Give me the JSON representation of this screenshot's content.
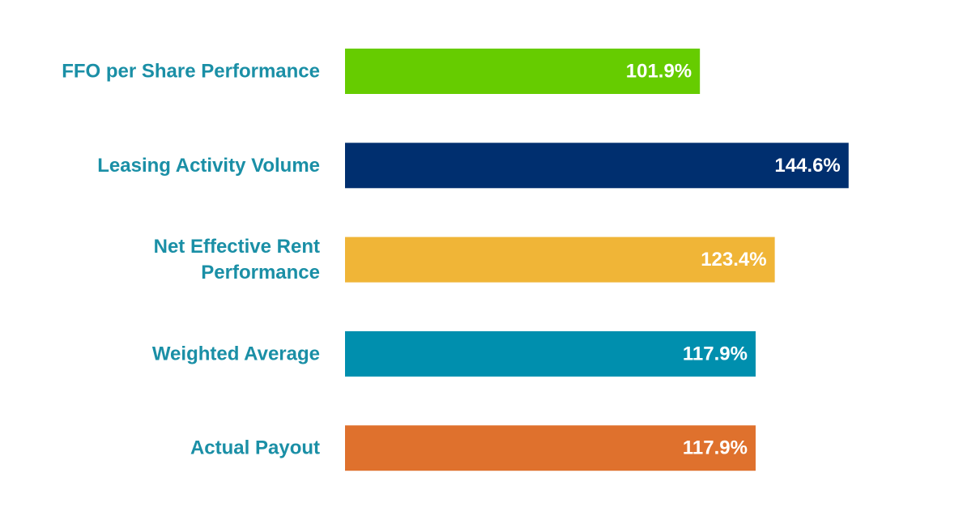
{
  "chart_data": {
    "type": "bar",
    "orientation": "horizontal",
    "title": "",
    "xlabel": "",
    "ylabel": "",
    "categories": [
      "FFO per Share Performance",
      "Leasing Activity Volume",
      "Net Effective Rent Performance",
      "Weighted Average",
      "Actual Payout"
    ],
    "category_lines": [
      [
        "FFO per Share Performance"
      ],
      [
        "Leasing Activity Volume"
      ],
      [
        "Net Effective Rent",
        "Performance"
      ],
      [
        "Weighted Average"
      ],
      [
        "Actual Payout"
      ]
    ],
    "values": [
      101.9,
      144.6,
      123.4,
      117.9,
      117.9
    ],
    "value_labels": [
      "101.9%",
      "144.6%",
      "123.4%",
      "117.9%",
      "117.9%"
    ],
    "colors": [
      "#66cc00",
      "#002f6f",
      "#f0b537",
      "#008fae",
      "#df712d"
    ],
    "label_color": "#1a8fa6",
    "value_label_color": "#ffffff",
    "unit": "%",
    "xlim": [
      0,
      150
    ],
    "grid": false,
    "legend": "none"
  }
}
